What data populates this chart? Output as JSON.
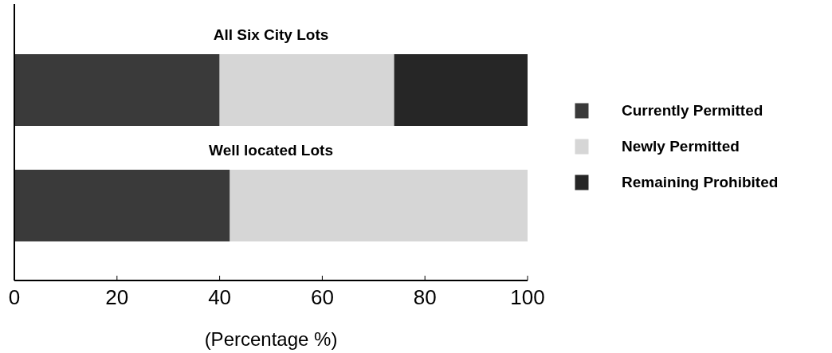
{
  "chart_data": {
    "type": "bar",
    "orientation": "horizontal",
    "stacked": true,
    "xlabel": "(Percentage %)",
    "categories": [
      "All Six City Lots",
      "Well located Lots"
    ],
    "series": [
      {
        "name": "Currently Permitted",
        "color": "#3a3a3a",
        "values": [
          40,
          42
        ]
      },
      {
        "name": "Newly Permitted",
        "color": "#d6d6d6",
        "values": [
          34,
          58
        ]
      },
      {
        "name": "Remaining Prohibited",
        "color": "#262626",
        "values": [
          26,
          0
        ]
      }
    ],
    "xlim": [
      0,
      100
    ],
    "xticks": [
      0,
      20,
      40,
      60,
      80,
      100
    ],
    "legend": "right",
    "grid": false
  }
}
